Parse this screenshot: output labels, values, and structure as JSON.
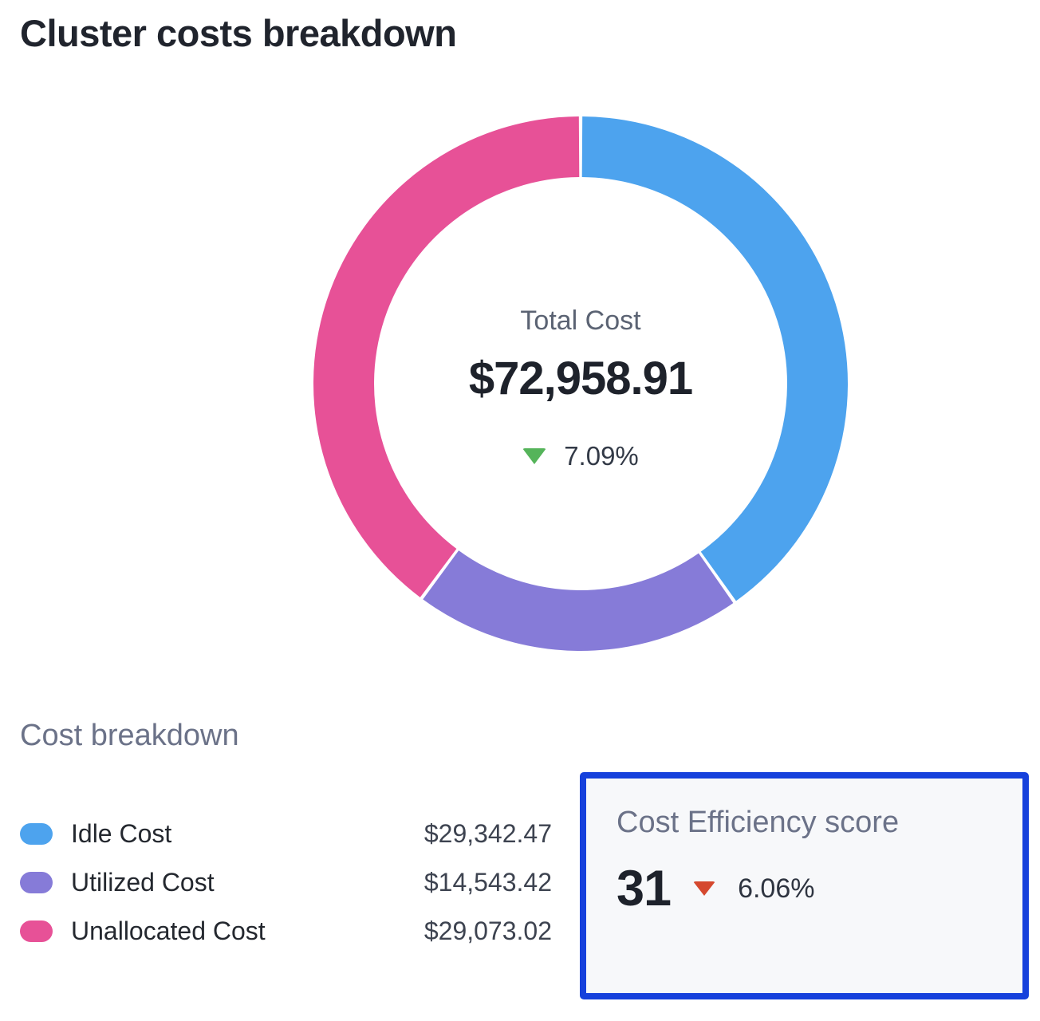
{
  "page": {
    "title": "Cluster costs breakdown"
  },
  "colors": {
    "idle_blue": "#4da3ee",
    "utilized_purple": "#867bd8",
    "unallocated_pink": "#e75197",
    "positive_green": "#55b45a",
    "negative_red": "#d5492f",
    "highlight_border_blue": "#1641dc",
    "card_background": "#f7f8fa",
    "heading_slate": "#6b7288",
    "text_dark": "#1e222b"
  },
  "chart_data": {
    "type": "pie",
    "variant": "donut",
    "title": "Cluster costs breakdown",
    "categories": [
      "Idle Cost",
      "Utilized Cost",
      "Unallocated Cost"
    ],
    "values": [
      29342.47,
      14543.42,
      29073.02
    ],
    "value_labels": [
      "$29,342.47",
      "$14,543.42",
      "$29,073.02"
    ],
    "percentages": [
      40.22,
      19.93,
      39.85
    ],
    "colors": [
      "#4da3ee",
      "#867bd8",
      "#e75197"
    ],
    "start_angle_deg": 0,
    "direction": "clockwise",
    "legend_position": "bottom-left",
    "center": {
      "label": "Total Cost",
      "value": "$72,958.91",
      "change": "7.09%",
      "change_direction": "down",
      "change_indicator_color": "#55b45a"
    }
  },
  "breakdown": {
    "heading": "Cost breakdown",
    "items": [
      {
        "label": "Idle Cost",
        "value": "$29,342.47",
        "color": "#4da3ee"
      },
      {
        "label": "Utilized Cost",
        "value": "$14,543.42",
        "color": "#867bd8"
      },
      {
        "label": "Unallocated Cost",
        "value": "$29,073.02",
        "color": "#e75197"
      }
    ]
  },
  "efficiency": {
    "heading": "Cost Efficiency score",
    "score": "31",
    "change": "6.06%",
    "change_direction": "down",
    "change_indicator_color": "#d5492f"
  }
}
